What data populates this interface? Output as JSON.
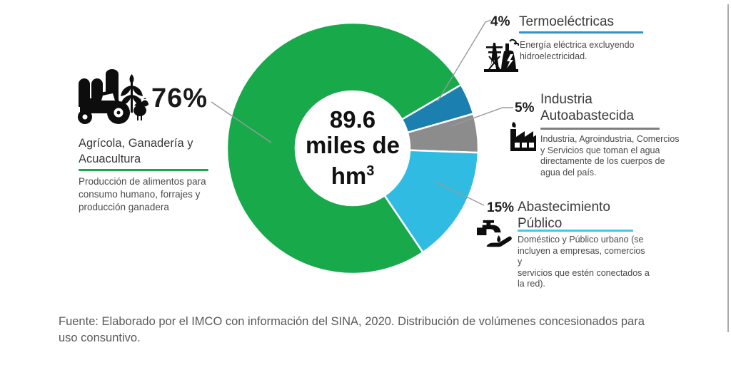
{
  "chart_data": {
    "type": "pie",
    "subtype": "donut",
    "legend_position": "callout-labels",
    "start_angle_deg": 146,
    "center": {
      "value": "89.6",
      "unit_mid": "miles de",
      "unit_base": "hm",
      "unit_sup": "3"
    },
    "categories": [
      "Agrícola, Ganadería y Acuacultura",
      "Termoeléctricas",
      "Industria Autoabastecida",
      "Abastecimiento Público"
    ],
    "values": [
      76,
      4,
      5,
      15
    ],
    "segments": [
      {
        "id": "agricola",
        "pct": 76,
        "pct_label": "76%",
        "title": "Agrícola, Ganadería y\nAcuacultura",
        "description": "Producción de alimentos para\nconsumo humano, forrajes y\nproducción ganadera",
        "color": "#18A94B",
        "underline_color": "#18A94B",
        "icon": "tractor-farm-icon"
      },
      {
        "id": "termoelectricas",
        "pct": 4,
        "pct_label": "4%",
        "title": "Termoeléctricas",
        "description": "Energía eléctrica excluyendo\nhidroelectricidad.",
        "color": "#1B7FB0",
        "underline_color": "#2E93C8",
        "icon": "power-plant-icon"
      },
      {
        "id": "industria",
        "pct": 5,
        "pct_label": "5%",
        "title": "Industria\nAutoabastecida",
        "description": "Industria, Agroindustria, Comercios\ny Servicios que toman el agua\ndirectamente de los cuerpos de\nagua del país.",
        "color": "#8C8C8C",
        "underline_color": "#7F7F7F",
        "icon": "factory-icon"
      },
      {
        "id": "abastecimiento",
        "pct": 15,
        "pct_label": "15%",
        "title": "Abastecimiento\nPúblico",
        "description": "Doméstico y Público urbano (se\nincluyen a empresas, comercios y\nservicios que estén conectados a\nla red).",
        "color": "#30BCE2",
        "underline_color": "#3EC9E9",
        "icon": "water-tap-hand-icon"
      }
    ]
  },
  "source": "Fuente: Elaborado por el IMCO con información del SINA, 2020. Distribución de volúmenes concesionados para\nuso consuntivo."
}
